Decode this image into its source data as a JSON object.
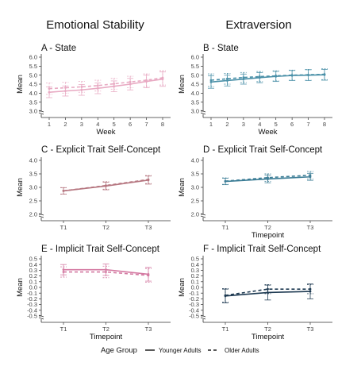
{
  "figure": {
    "column_titles": [
      "Emotional Stability",
      "Extraversion"
    ],
    "legend": {
      "title": "Age Group",
      "entries": [
        "Younger Adults",
        "Older Adults"
      ]
    }
  },
  "chart_data": [
    {
      "type": "line",
      "title": "A - State",
      "xlabel": "Week",
      "ylabel": "Mean",
      "categories": [
        "1",
        "2",
        "3",
        "4",
        "5",
        "6",
        "7",
        "8"
      ],
      "yticks": [
        "3.0",
        "3.5",
        "4.0",
        "4.5",
        "5.0",
        "5.5",
        "6.0"
      ],
      "ylim": [
        3.0,
        6.0
      ],
      "y_axis_break": true,
      "color": "#e8a9c2",
      "series": [
        {
          "name": "Younger Adults",
          "values": [
            4.05,
            4.12,
            4.18,
            4.27,
            4.38,
            4.5,
            4.65,
            4.78
          ],
          "err": [
            0.3,
            0.28,
            0.3,
            0.3,
            0.3,
            0.32,
            0.35,
            0.4
          ]
        },
        {
          "name": "Older Adults",
          "values": [
            4.25,
            4.3,
            4.35,
            4.42,
            4.52,
            4.62,
            4.72,
            4.85
          ],
          "err": [
            0.32,
            0.3,
            0.3,
            0.3,
            0.3,
            0.32,
            0.35,
            0.4
          ]
        }
      ]
    },
    {
      "type": "line",
      "title": "B - State",
      "xlabel": "Week",
      "ylabel": "Mean",
      "categories": [
        "1",
        "2",
        "3",
        "4",
        "5",
        "6",
        "7",
        "8"
      ],
      "yticks": [
        "3.0",
        "3.5",
        "4.0",
        "4.5",
        "5.0",
        "5.5",
        "6.0"
      ],
      "ylim": [
        3.0,
        6.0
      ],
      "y_axis_break": true,
      "color": "#4a90a8",
      "series": [
        {
          "name": "Younger Adults",
          "values": [
            4.62,
            4.7,
            4.78,
            4.86,
            4.93,
            4.98,
            5.0,
            5.02
          ],
          "err": [
            0.35,
            0.3,
            0.28,
            0.28,
            0.28,
            0.28,
            0.3,
            0.3
          ]
        },
        {
          "name": "Older Adults",
          "values": [
            4.72,
            4.8,
            4.87,
            4.92,
            4.96,
            5.0,
            5.02,
            5.05
          ],
          "err": [
            0.35,
            0.3,
            0.28,
            0.28,
            0.28,
            0.28,
            0.3,
            0.3
          ]
        }
      ]
    },
    {
      "type": "line",
      "title": "C - Explicit Trait Self-Concept",
      "xlabel": "",
      "ylabel": "Mean",
      "categories": [
        "T1",
        "T2",
        "T3"
      ],
      "yticks": [
        "2.0",
        "2.5",
        "3.0",
        "3.5",
        "4.0"
      ],
      "ylim": [
        2.0,
        4.0
      ],
      "y_axis_break": true,
      "color": "#b5757f",
      "series": [
        {
          "name": "Younger Adults",
          "values": [
            2.87,
            3.05,
            3.27
          ],
          "err": [
            0.12,
            0.14,
            0.15
          ]
        },
        {
          "name": "Older Adults",
          "values": [
            2.87,
            3.07,
            3.29
          ],
          "err": [
            0.12,
            0.14,
            0.15
          ]
        }
      ]
    },
    {
      "type": "line",
      "title": "D - Explicit Trait Self-Concept",
      "xlabel": "Timepoint",
      "ylabel": "Mean",
      "categories": [
        "T1",
        "T2",
        "T3"
      ],
      "yticks": [
        "2.0",
        "2.5",
        "3.0",
        "3.5",
        "4.0"
      ],
      "ylim": [
        2.0,
        4.0
      ],
      "y_axis_break": true,
      "color": "#3c7d96",
      "series": [
        {
          "name": "Younger Adults",
          "values": [
            3.22,
            3.31,
            3.39
          ],
          "err": [
            0.12,
            0.14,
            0.13
          ]
        },
        {
          "name": "Older Adults",
          "values": [
            3.23,
            3.36,
            3.45
          ],
          "err": [
            0.12,
            0.14,
            0.14
          ]
        }
      ]
    },
    {
      "type": "line",
      "title": "E - Implicit Trait Self-Concept",
      "xlabel": "Timepoint",
      "ylabel": "Mean",
      "categories": [
        "T1",
        "T2",
        "T3"
      ],
      "yticks": [
        "-0.5",
        "-0.4",
        "-0.3",
        "-0.2",
        "-0.1",
        "0.0",
        "0.1",
        "0.2",
        "0.3",
        "0.4",
        "0.5"
      ],
      "ylim": [
        -0.5,
        0.5
      ],
      "y_axis_break": true,
      "color": "#d47aa2",
      "series": [
        {
          "name": "Younger Adults",
          "values": [
            0.31,
            0.31,
            0.23
          ],
          "err": [
            0.09,
            0.1,
            0.12
          ]
        },
        {
          "name": "Older Adults",
          "values": [
            0.27,
            0.27,
            0.21
          ],
          "err": [
            0.09,
            0.1,
            0.12
          ]
        }
      ]
    },
    {
      "type": "line",
      "title": "F - Implicit Trait Self-Concept",
      "xlabel": "Timepoint",
      "ylabel": "Mean",
      "categories": [
        "T1",
        "T2",
        "T3"
      ],
      "yticks": [
        "-0.5",
        "-0.4",
        "-0.3",
        "-0.2",
        "-0.1",
        "0.0",
        "0.1",
        "0.2",
        "0.3",
        "0.4",
        "0.5"
      ],
      "ylim": [
        -0.5,
        0.5
      ],
      "y_axis_break": true,
      "color": "#1e3a52",
      "series": [
        {
          "name": "Younger Adults",
          "values": [
            -0.15,
            -0.09,
            -0.07
          ],
          "err": [
            0.12,
            0.13,
            0.13
          ]
        },
        {
          "name": "Older Adults",
          "values": [
            -0.14,
            -0.03,
            -0.03
          ],
          "err": [
            0.12,
            0.08,
            0.08
          ]
        }
      ]
    }
  ]
}
